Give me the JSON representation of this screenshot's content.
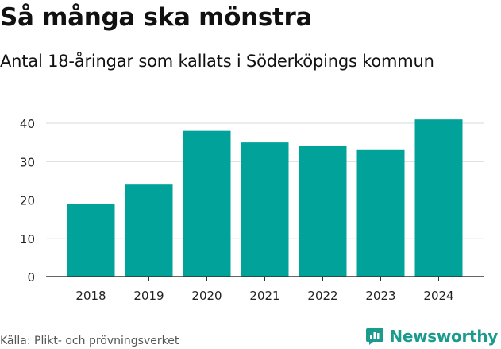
{
  "header": {
    "title": "Så många ska mönstra",
    "subtitle": "Antal 18-åringar som kallats i Söderköpings kommun"
  },
  "footer": {
    "source": "Källa: Plikt- och prövningsverket",
    "brand": "Newsworthy"
  },
  "colors": {
    "bar": "#00a29a",
    "grid": "#d9d9d9",
    "axis": "#333333",
    "brand": "#1a9b8e"
  },
  "chart_data": {
    "type": "bar",
    "title": "Så många ska mönstra",
    "subtitle": "Antal 18-åringar som kallats i Söderköpings kommun",
    "xlabel": "",
    "ylabel": "",
    "categories": [
      "2018",
      "2019",
      "2020",
      "2021",
      "2022",
      "2023",
      "2024"
    ],
    "values": [
      19,
      24,
      38,
      35,
      34,
      33,
      41
    ],
    "ylim": [
      0,
      40
    ],
    "yticks": [
      0,
      10,
      20,
      30,
      40
    ],
    "grid": true
  }
}
